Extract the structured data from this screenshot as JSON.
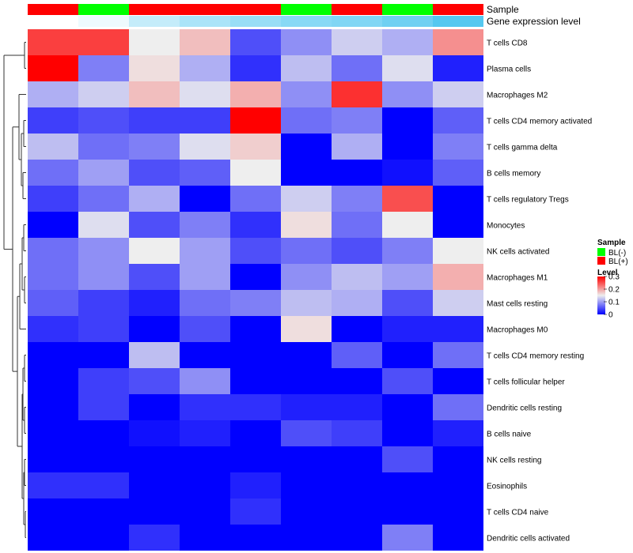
{
  "chart_data": {
    "type": "heatmap",
    "annotation_rows": [
      {
        "label": "Sample",
        "groups": [
          "BL(+)",
          "BL(-)",
          "BL(+)",
          "BL(+)",
          "BL(+)",
          "BL(-)",
          "BL(+)",
          "BL(-)",
          "BL(+)"
        ]
      },
      {
        "label": "Gene expression level",
        "values": [
          0.0,
          0.1,
          0.35,
          0.5,
          0.6,
          0.7,
          0.75,
          0.85,
          1.0
        ]
      }
    ],
    "rows": [
      "T cells CD8",
      "Plasma cells",
      "Macrophages M2",
      "T cells CD4 memory activated",
      "T cells gamma delta",
      "B cells memory",
      "T cells regulatory  Tregs",
      "Monocytes",
      "NK cells activated",
      "Macrophages M1",
      "Mast cells resting",
      "Macrophages M0",
      "T cells CD4 memory resting",
      "T cells follicular helper",
      "Dendritic cells resting",
      "B cells naive",
      "NK cells resting",
      "Eosinophils",
      "T cells CD4 naive",
      "Dendritic cells activated"
    ],
    "values": [
      [
        0.26,
        0.26,
        0.15,
        0.18,
        0.05,
        0.09,
        0.13,
        0.11,
        0.21
      ],
      [
        0.3,
        0.08,
        0.16,
        0.11,
        0.03,
        0.12,
        0.07,
        0.14,
        0.02
      ],
      [
        0.11,
        0.13,
        0.18,
        0.14,
        0.19,
        0.09,
        0.27,
        0.09,
        0.13
      ],
      [
        0.04,
        0.05,
        0.04,
        0.04,
        0.3,
        0.07,
        0.08,
        0.0,
        0.06
      ],
      [
        0.12,
        0.07,
        0.08,
        0.14,
        0.17,
        0.0,
        0.11,
        0.0,
        0.08
      ],
      [
        0.07,
        0.1,
        0.05,
        0.06,
        0.15,
        0.0,
        0.0,
        0.01,
        0.06
      ],
      [
        0.04,
        0.07,
        0.11,
        0.0,
        0.07,
        0.13,
        0.08,
        0.25,
        0.0
      ],
      [
        0.0,
        0.14,
        0.05,
        0.08,
        0.03,
        0.16,
        0.07,
        0.15,
        0.0
      ],
      [
        0.07,
        0.09,
        0.15,
        0.1,
        0.05,
        0.07,
        0.05,
        0.08,
        0.15
      ],
      [
        0.07,
        0.09,
        0.05,
        0.1,
        0.0,
        0.09,
        0.12,
        0.1,
        0.19
      ],
      [
        0.06,
        0.04,
        0.02,
        0.07,
        0.08,
        0.12,
        0.11,
        0.05,
        0.13
      ],
      [
        0.03,
        0.04,
        0.0,
        0.05,
        0.0,
        0.16,
        0.0,
        0.02,
        0.02
      ],
      [
        0.0,
        0.0,
        0.12,
        0.0,
        0.0,
        0.0,
        0.06,
        0.0,
        0.07
      ],
      [
        0.0,
        0.04,
        0.05,
        0.09,
        0.0,
        0.0,
        0.0,
        0.05,
        0.0
      ],
      [
        0.0,
        0.04,
        0.0,
        0.03,
        0.03,
        0.02,
        0.02,
        0.0,
        0.07
      ],
      [
        0.0,
        0.0,
        0.01,
        0.02,
        0.0,
        0.05,
        0.04,
        0.0,
        0.02
      ],
      [
        0.0,
        0.0,
        0.0,
        0.0,
        0.0,
        0.0,
        0.0,
        0.05,
        0.0
      ],
      [
        0.03,
        0.03,
        0.0,
        0.0,
        0.02,
        0.0,
        0.0,
        0.0,
        0.0
      ],
      [
        0.0,
        0.0,
        0.0,
        0.0,
        0.03,
        0.0,
        0.0,
        0.0,
        0.0
      ],
      [
        0.0,
        0.0,
        0.03,
        0.0,
        0.0,
        0.0,
        0.0,
        0.08,
        0.0
      ]
    ],
    "color_scale": {
      "min": 0,
      "mid": 0.15,
      "max": 0.3,
      "low": "#0000ff",
      "midcolor": "#eeeeee",
      "high": "#ff0000"
    },
    "legend": {
      "position": "right",
      "sample_title": "Sample",
      "sample_items": [
        {
          "label": "BL(-)",
          "color": "#00ff00"
        },
        {
          "label": "BL(+)",
          "color": "#ff0000"
        }
      ],
      "level_title": "Level",
      "level_ticks": [
        {
          "value": 0.3,
          "label": "0.3"
        },
        {
          "value": 0.2,
          "label": "0.2"
        },
        {
          "value": 0.1,
          "label": "0.1"
        },
        {
          "value": 0,
          "label": "0"
        }
      ]
    },
    "annotation_colors": {
      "sample": {
        "BL(-)": "#00ff00",
        "BL(+)": "#ff0000"
      },
      "gene_expression_low": "#ffffff",
      "gene_expression_high": "#55c8f0"
    },
    "dendrogram": "rows"
  }
}
